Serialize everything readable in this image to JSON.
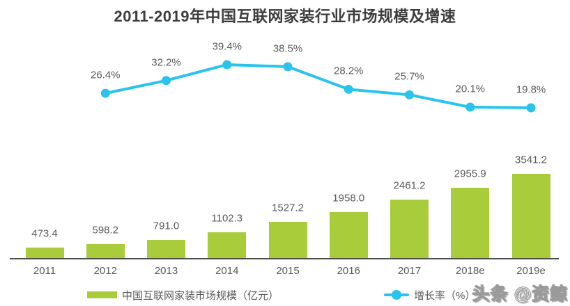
{
  "title": "2011-2019年中国互联网家装行业市场规模及增速",
  "watermark": "头条 @资鲸",
  "colors": {
    "bar": "#a8cc3a",
    "line": "#29c3ec",
    "text": "#595959",
    "title": "#3d3d3d",
    "axis": "#4d4d4d"
  },
  "legend": [
    {
      "label": "中国互联网家装市场规模（亿元）",
      "type": "bar"
    },
    {
      "label": "增长率（%）",
      "type": "line"
    }
  ],
  "chart_data": {
    "type": "bar",
    "title": "2011-2019年中国互联网家装行业市场规模及增速",
    "categories": [
      "2011",
      "2012",
      "2013",
      "2014",
      "2015",
      "2016",
      "2017",
      "2018e",
      "2019e"
    ],
    "series": [
      {
        "name": "中国互联网家装市场规模（亿元）",
        "type": "bar",
        "unit": "亿元",
        "values": [
          473.4,
          598.2,
          791.0,
          1102.3,
          1527.2,
          1958.0,
          2461.2,
          2955.9,
          3541.2
        ]
      },
      {
        "name": "增长率（%）",
        "type": "line",
        "unit": "%",
        "values": [
          null,
          26.4,
          32.2,
          39.4,
          38.5,
          28.2,
          25.7,
          20.1,
          19.8
        ]
      }
    ],
    "xlabel": "",
    "ylabel": "",
    "grid": false,
    "axes_visible": false,
    "legend_position": "bottom",
    "data_labels_visible": true
  }
}
